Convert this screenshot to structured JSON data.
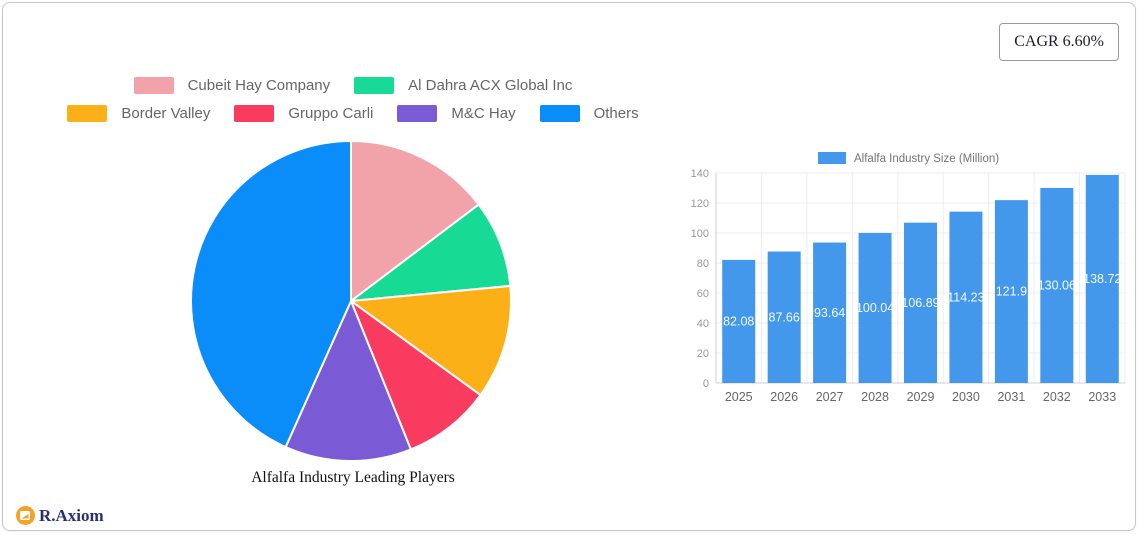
{
  "badge": {
    "label": "CAGR 6.60%"
  },
  "logo": {
    "text": "R.Axiom",
    "icon": "pie-chart-logo-icon",
    "icon_color": "#F4A229",
    "text_color": "#283071"
  },
  "chart_data": [
    {
      "type": "pie",
      "title": "Alfalfa Industry Leading Players",
      "labels": [
        "Cubeit Hay Company",
        "Al Dahra ACX Global Inc",
        "Border Valley",
        "Gruppo Carli",
        "M&C Hay",
        "Others"
      ],
      "values": [
        14.7,
        8.8,
        11.5,
        8.9,
        12.8,
        43.3
      ],
      "colors": [
        "#F2A2A9",
        "#17DB94",
        "#FBB017",
        "#F83B5F",
        "#7A5BD5",
        "#0A8DF8"
      ],
      "legend_position": "top",
      "legend_rows": [
        2,
        4
      ],
      "slice_border_color": "#ffffff",
      "start_angle_deg": 0,
      "direction": "clockwise"
    },
    {
      "type": "bar",
      "legend": "Alfalfa Industry Size (Million)",
      "categories": [
        "2025",
        "2026",
        "2027",
        "2028",
        "2029",
        "2030",
        "2031",
        "2032",
        "2033"
      ],
      "values": [
        82.08,
        87.66,
        93.64,
        100.04,
        106.89,
        114.23,
        121.9,
        130.06,
        138.72
      ],
      "value_labels": [
        "82.08",
        "87.66",
        "93.64",
        "100.04",
        "106.89",
        "114.23",
        "121.9",
        "130.06",
        "138.72"
      ],
      "bar_color": "#4398EC",
      "value_label_color": "#ffffff",
      "ylim": [
        0,
        140
      ],
      "ytick_step": 20,
      "yticks": [
        0,
        20,
        40,
        60,
        80,
        100,
        120,
        140
      ],
      "grid": true,
      "legend_position": "top",
      "axis_label_color": "#999999",
      "category_label_color": "#666666"
    }
  ]
}
